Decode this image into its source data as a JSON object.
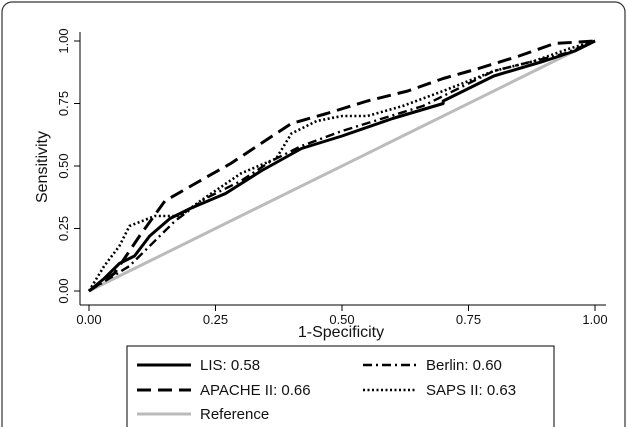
{
  "chart_data": {
    "type": "line",
    "xlabel": "1-Specificity",
    "ylabel": "Sensitivity",
    "xlim": [
      0,
      1
    ],
    "ylim": [
      0,
      1
    ],
    "x_ticks": [
      "0.00",
      "0.25",
      "0.50",
      "0.75",
      "1.00"
    ],
    "y_ticks": [
      "0.00",
      "0.25",
      "0.50",
      "0.75",
      "1.00"
    ],
    "grid": false,
    "legend_position": "bottom",
    "series": [
      {
        "name": "LIS: 0.58",
        "style": "solid",
        "color": "#000000",
        "points": [
          [
            0,
            0
          ],
          [
            0.03,
            0.05
          ],
          [
            0.06,
            0.11
          ],
          [
            0.09,
            0.14
          ],
          [
            0.12,
            0.22
          ],
          [
            0.16,
            0.29
          ],
          [
            0.2,
            0.33
          ],
          [
            0.27,
            0.39
          ],
          [
            0.34,
            0.48
          ],
          [
            0.42,
            0.57
          ],
          [
            0.5,
            0.62
          ],
          [
            0.6,
            0.69
          ],
          [
            0.7,
            0.75
          ],
          [
            0.7,
            0.76
          ],
          [
            0.8,
            0.86
          ],
          [
            0.9,
            0.92
          ],
          [
            0.96,
            0.96
          ],
          [
            1,
            1
          ]
        ]
      },
      {
        "name": "Berlin: 0.60",
        "style": "dash-dot",
        "color": "#000000",
        "points": [
          [
            0,
            0
          ],
          [
            0.04,
            0.05
          ],
          [
            0.08,
            0.1
          ],
          [
            0.12,
            0.18
          ],
          [
            0.17,
            0.28
          ],
          [
            0.23,
            0.37
          ],
          [
            0.3,
            0.44
          ],
          [
            0.36,
            0.52
          ],
          [
            0.42,
            0.58
          ],
          [
            0.5,
            0.64
          ],
          [
            0.58,
            0.69
          ],
          [
            0.66,
            0.74
          ],
          [
            0.74,
            0.82
          ],
          [
            0.8,
            0.88
          ],
          [
            0.88,
            0.92
          ],
          [
            0.94,
            0.95
          ],
          [
            1,
            1
          ]
        ]
      },
      {
        "name": "APACHE II: 0.66",
        "style": "dashed",
        "color": "#000000",
        "points": [
          [
            0,
            0
          ],
          [
            0.05,
            0.07
          ],
          [
            0.1,
            0.22
          ],
          [
            0.15,
            0.36
          ],
          [
            0.21,
            0.43
          ],
          [
            0.28,
            0.51
          ],
          [
            0.34,
            0.59
          ],
          [
            0.4,
            0.67
          ],
          [
            0.47,
            0.71
          ],
          [
            0.55,
            0.76
          ],
          [
            0.63,
            0.8
          ],
          [
            0.7,
            0.85
          ],
          [
            0.77,
            0.89
          ],
          [
            0.85,
            0.94
          ],
          [
            0.92,
            0.99
          ],
          [
            1,
            1
          ]
        ]
      },
      {
        "name": "SAPS II: 0.63",
        "style": "dotted",
        "color": "#000000",
        "points": [
          [
            0,
            0
          ],
          [
            0.03,
            0.1
          ],
          [
            0.06,
            0.18
          ],
          [
            0.08,
            0.26
          ],
          [
            0.13,
            0.3
          ],
          [
            0.18,
            0.3
          ],
          [
            0.22,
            0.36
          ],
          [
            0.3,
            0.47
          ],
          [
            0.37,
            0.53
          ],
          [
            0.4,
            0.63
          ],
          [
            0.45,
            0.68
          ],
          [
            0.5,
            0.7
          ],
          [
            0.55,
            0.7
          ],
          [
            0.62,
            0.74
          ],
          [
            0.7,
            0.8
          ],
          [
            0.8,
            0.88
          ],
          [
            0.88,
            0.92
          ],
          [
            0.95,
            0.97
          ],
          [
            1,
            1
          ]
        ]
      },
      {
        "name": "Reference",
        "style": "solid",
        "color": "#bbbbbb",
        "points": [
          [
            0,
            0
          ],
          [
            1,
            1
          ]
        ]
      }
    ]
  }
}
